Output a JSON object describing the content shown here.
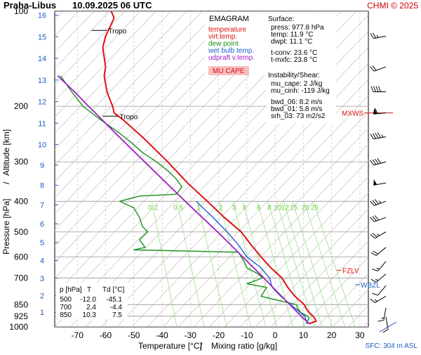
{
  "header": {
    "station": "Praha-Libus",
    "datetime": "10.09.2025 06 UTC",
    "credit": "CHMI © 2025"
  },
  "axes": {
    "x_label": "Temperature [°C]",
    "x_sep": "/",
    "x_label2": "Mixing ratio [g/kg]",
    "y_label": "Pressure [hPa]",
    "y_sep": "/",
    "y_label2": "Altitude [km]",
    "sfc_label": "SFC: 304 m ASL"
  },
  "legend": {
    "title": "EMAGRAM",
    "items": [
      {
        "label": "temperature",
        "color": "#e01010"
      },
      {
        "label": "virt.temp.",
        "color": "#e01010"
      },
      {
        "label": "dew point",
        "color": "#1a8f1a"
      },
      {
        "label": "wet bulb temp.",
        "color": "#2060d0"
      },
      {
        "label": "udpraft v.temp.",
        "color": "#a020c0"
      }
    ],
    "cape_label": "MU CAPE",
    "cape_bg": "#f6c0c0"
  },
  "surface_info": {
    "title": "Surface:",
    "lines": [
      {
        "text": "press: 977.8 hPa",
        "color": "#000000"
      },
      {
        "text": "temp: 11.9 °C",
        "color": "#e01010"
      },
      {
        "text": "dwpt: 11.1 °C",
        "color": "#1a8f1a"
      },
      {
        "text": "t-conv: 23.6 °C",
        "color": "#000000"
      },
      {
        "text": "t-mxfc: 23.8 °C",
        "color": "#000000"
      }
    ],
    "instab_title": "Instability/Shear:",
    "instab_lines": [
      "mu_cape: 2 J/kg",
      "mu_cinh: -119 J/kg",
      "bwd_06: 8.2 m/s",
      "bwd_01: 5.8 m/s",
      "srh_03: 73 m2/s2"
    ]
  },
  "table": {
    "headers": [
      "p [hPa]",
      "T",
      "Td [°C]"
    ],
    "rows": [
      [
        "500",
        "-12.0",
        "-45.1"
      ],
      [
        "700",
        "2.4",
        "-4.4"
      ],
      [
        "850",
        "10.3",
        "7.5"
      ]
    ]
  },
  "markers": {
    "tropo": "Tropo",
    "mxws": "MXWS",
    "fzlv": "FZLV",
    "wbzl": "WBZL"
  },
  "chart_data": {
    "type": "line",
    "title": "Praha-Libus 10.09.2025 06 UTC",
    "xlabel": "Temperature [°C] / Mixing ratio [g/kg]",
    "ylabel": "Pressure [hPa] / Altitude [km]",
    "x_ticks": [
      -70,
      -60,
      -50,
      -40,
      -30,
      -20,
      -10,
      0,
      10,
      20,
      30
    ],
    "xlim": [
      -78,
      33
    ],
    "y_log_scale": true,
    "ylim": [
      1000,
      100
    ],
    "pressure_ticks": [
      100,
      200,
      300,
      400,
      500,
      600,
      700,
      850,
      925,
      1000
    ],
    "altitude_ticks_km": [
      1,
      2,
      3,
      4,
      5,
      6,
      7,
      8,
      9,
      10,
      11,
      12,
      13,
      14,
      15,
      16
    ],
    "mixing_ratio_labels": [
      "0.2",
      "0.5",
      "1",
      "2",
      "3",
      "4",
      "6",
      "8",
      "10",
      "12",
      "15",
      "20",
      "25"
    ],
    "mixing_ratio_values": [
      0.2,
      0.5,
      1,
      2,
      3,
      4,
      6,
      8,
      10,
      12,
      15,
      20,
      25
    ],
    "grid": true,
    "series": [
      {
        "name": "temperature",
        "color": "#e01010",
        "points": [
          [
            977.8,
            11.9
          ],
          [
            960,
            14.5
          ],
          [
            940,
            14
          ],
          [
            925,
            13.4
          ],
          [
            900,
            12
          ],
          [
            875,
            11
          ],
          [
            850,
            10.3
          ],
          [
            800,
            7
          ],
          [
            750,
            4.5
          ],
          [
            700,
            2.4
          ],
          [
            650,
            -1.5
          ],
          [
            600,
            -5
          ],
          [
            550,
            -8.5
          ],
          [
            500,
            -12
          ],
          [
            450,
            -18
          ],
          [
            400,
            -24
          ],
          [
            350,
            -31
          ],
          [
            300,
            -38
          ],
          [
            250,
            -47
          ],
          [
            220,
            -54
          ],
          [
            210,
            -57
          ],
          [
            200,
            -57.5
          ],
          [
            190,
            -58.5
          ],
          [
            180,
            -59.5
          ],
          [
            170,
            -60
          ],
          [
            160,
            -60.5
          ],
          [
            150,
            -60
          ],
          [
            140,
            -60.5
          ],
          [
            130,
            -61
          ],
          [
            120,
            -60
          ],
          [
            110,
            -58
          ],
          [
            105,
            -57
          ],
          [
            100,
            -58
          ]
        ]
      },
      {
        "name": "dew point",
        "color": "#1a8f1a",
        "points": [
          [
            977.8,
            11.1
          ],
          [
            940,
            12
          ],
          [
            925,
            11.5
          ],
          [
            900,
            9
          ],
          [
            875,
            8
          ],
          [
            850,
            7.5
          ],
          [
            800,
            -5
          ],
          [
            750,
            -3
          ],
          [
            730,
            -10
          ],
          [
            700,
            -4.4
          ],
          [
            680,
            -6
          ],
          [
            650,
            -10
          ],
          [
            620,
            -11
          ],
          [
            600,
            -12
          ],
          [
            580,
            -13
          ],
          [
            570,
            -50
          ],
          [
            560,
            -46
          ],
          [
            530,
            -48
          ],
          [
            500,
            -45.1
          ],
          [
            480,
            -47
          ],
          [
            450,
            -48
          ],
          [
            420,
            -50
          ],
          [
            400,
            -55
          ],
          [
            385,
            -48
          ],
          [
            380,
            -35
          ],
          [
            360,
            -33
          ],
          [
            340,
            -35
          ],
          [
            320,
            -38
          ],
          [
            300,
            -42
          ],
          [
            280,
            -47
          ],
          [
            260,
            -51
          ],
          [
            240,
            -56
          ],
          [
            220,
            -62
          ],
          [
            200,
            -68
          ],
          [
            180,
            -72
          ],
          [
            160,
            -76
          ]
        ]
      },
      {
        "name": "wet bulb temp.",
        "color": "#2060d0",
        "points": [
          [
            977.8,
            11.4
          ],
          [
            925,
            10.5
          ],
          [
            850,
            5.5
          ],
          [
            800,
            2
          ],
          [
            750,
            -1
          ],
          [
            700,
            -2
          ],
          [
            650,
            -5
          ],
          [
            600,
            -10
          ],
          [
            550,
            -13
          ],
          [
            500,
            -17
          ],
          [
            450,
            -22
          ],
          [
            400,
            -28
          ]
        ]
      },
      {
        "name": "udpraft v.temp.",
        "color": "#a020c0",
        "points": [
          [
            977.8,
            12.1
          ],
          [
            925,
            9.2
          ],
          [
            850,
            5.2
          ],
          [
            800,
            2.3
          ],
          [
            750,
            -0.8
          ],
          [
            700,
            -4
          ],
          [
            650,
            -7.6
          ],
          [
            600,
            -11.5
          ],
          [
            550,
            -15.7
          ],
          [
            500,
            -20.4
          ],
          [
            450,
            -25.8
          ],
          [
            400,
            -31.8
          ],
          [
            350,
            -38.5
          ],
          [
            300,
            -46.2
          ],
          [
            250,
            -55.2
          ],
          [
            200,
            -66
          ],
          [
            180,
            -71
          ],
          [
            160,
            -77
          ]
        ]
      }
    ],
    "wind_barbs": [
      {
        "p": 120,
        "dir": 260,
        "kt": 25
      },
      {
        "p": 150,
        "dir": 250,
        "kt": 20
      },
      {
        "p": 180,
        "dir": 270,
        "kt": 40
      },
      {
        "p": 210,
        "dir": 265,
        "kt": 60
      },
      {
        "p": 250,
        "dir": 260,
        "kt": 45
      },
      {
        "p": 300,
        "dir": 255,
        "kt": 40
      },
      {
        "p": 350,
        "dir": 260,
        "kt": 50
      },
      {
        "p": 400,
        "dir": 250,
        "kt": 35
      },
      {
        "p": 450,
        "dir": 250,
        "kt": 30
      },
      {
        "p": 500,
        "dir": 240,
        "kt": 25
      },
      {
        "p": 560,
        "dir": 230,
        "kt": 20
      },
      {
        "p": 620,
        "dir": 220,
        "kt": 15
      },
      {
        "p": 680,
        "dir": 230,
        "kt": 15
      },
      {
        "p": 740,
        "dir": 220,
        "kt": 10
      },
      {
        "p": 800,
        "dir": 240,
        "kt": 15
      },
      {
        "p": 870,
        "dir": 190,
        "kt": 15
      },
      {
        "p": 930,
        "dir": 170,
        "kt": 10
      }
    ]
  }
}
